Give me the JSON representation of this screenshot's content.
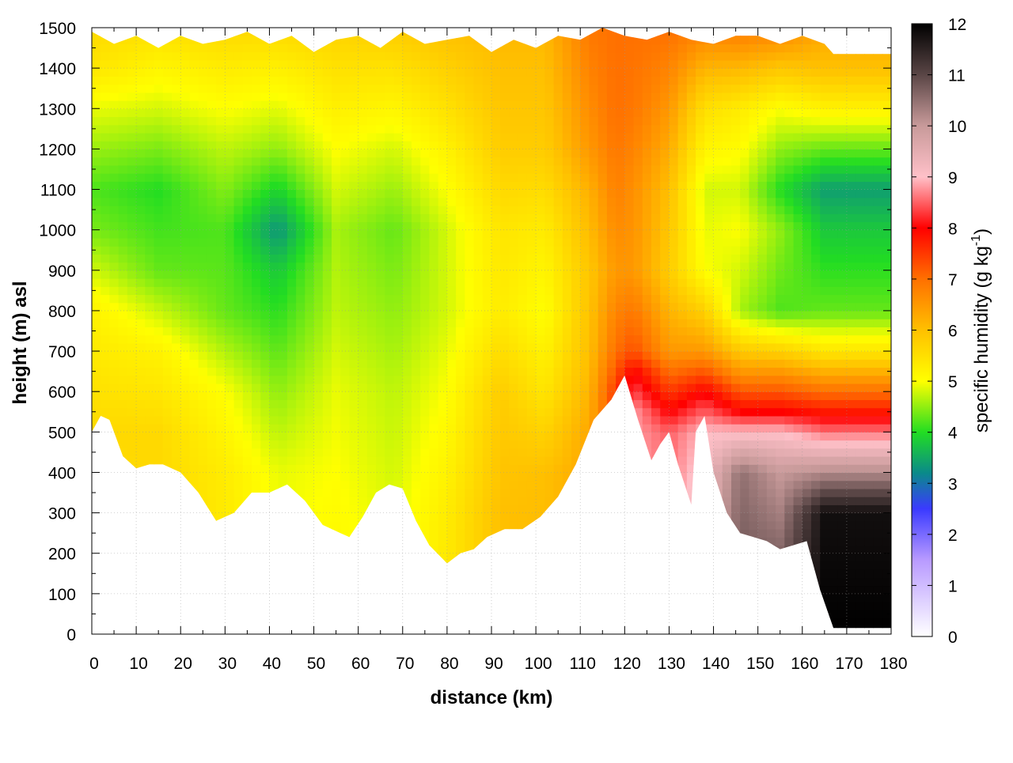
{
  "chart_data": {
    "type": "heatmap",
    "xlabel": "distance (km)",
    "ylabel": "height (m) asl",
    "xlim": [
      0,
      180
    ],
    "ylim": [
      0,
      1500
    ],
    "x_ticks": [
      0,
      10,
      20,
      30,
      40,
      50,
      60,
      70,
      80,
      90,
      100,
      110,
      120,
      130,
      140,
      150,
      160,
      170,
      180
    ],
    "y_ticks": [
      0,
      100,
      200,
      300,
      400,
      500,
      600,
      700,
      800,
      900,
      1000,
      1100,
      1200,
      1300,
      1400,
      1500
    ],
    "grid": true,
    "colorbar": {
      "label_main": "specific humidity (g kg",
      "label_sup": "-1",
      "label_end": ")",
      "range": [
        0,
        12
      ],
      "ticks": [
        0,
        1,
        2,
        3,
        4,
        5,
        6,
        7,
        8,
        9,
        10,
        11,
        12
      ],
      "colors": [
        {
          "value": 0,
          "color": "#ffffff"
        },
        {
          "value": 1.5,
          "color": "#b89aff"
        },
        {
          "value": 2.5,
          "color": "#3a3aff"
        },
        {
          "value": 3.2,
          "color": "#0a8a8a"
        },
        {
          "value": 4,
          "color": "#22dd22"
        },
        {
          "value": 5,
          "color": "#ffff00"
        },
        {
          "value": 6,
          "color": "#ffc000"
        },
        {
          "value": 7,
          "color": "#ff7000"
        },
        {
          "value": 8,
          "color": "#ff0000"
        },
        {
          "value": 9,
          "color": "#ffc0c8"
        },
        {
          "value": 10,
          "color": "#c89a9a"
        },
        {
          "value": 11,
          "color": "#5a4646"
        },
        {
          "value": 12,
          "color": "#000000"
        }
      ]
    },
    "terrain_bottom": [
      [
        0,
        500
      ],
      [
        2,
        540
      ],
      [
        4,
        530
      ],
      [
        7,
        440
      ],
      [
        10,
        410
      ],
      [
        13,
        420
      ],
      [
        16,
        420
      ],
      [
        20,
        400
      ],
      [
        24,
        350
      ],
      [
        28,
        280
      ],
      [
        32,
        300
      ],
      [
        36,
        350
      ],
      [
        40,
        350
      ],
      [
        44,
        370
      ],
      [
        48,
        330
      ],
      [
        52,
        270
      ],
      [
        56,
        250
      ],
      [
        58,
        240
      ],
      [
        61,
        290
      ],
      [
        64,
        350
      ],
      [
        67,
        370
      ],
      [
        70,
        360
      ],
      [
        73,
        280
      ],
      [
        76,
        220
      ],
      [
        80,
        175
      ],
      [
        83,
        200
      ],
      [
        86,
        210
      ],
      [
        89,
        240
      ],
      [
        93,
        260
      ],
      [
        97,
        260
      ],
      [
        101,
        290
      ],
      [
        105,
        340
      ],
      [
        109,
        420
      ],
      [
        113,
        530
      ],
      [
        117,
        580
      ],
      [
        120,
        640
      ],
      [
        123,
        530
      ],
      [
        126,
        430
      ],
      [
        128,
        470
      ],
      [
        130,
        500
      ],
      [
        132,
        420
      ],
      [
        135,
        320
      ],
      [
        136,
        500
      ],
      [
        138,
        540
      ],
      [
        140,
        400
      ],
      [
        143,
        300
      ],
      [
        146,
        250
      ],
      [
        149,
        240
      ],
      [
        152,
        230
      ],
      [
        155,
        210
      ],
      [
        158,
        220
      ],
      [
        161,
        230
      ],
      [
        164,
        110
      ],
      [
        167,
        15
      ],
      [
        180,
        15
      ]
    ],
    "terrain_top": [
      [
        0,
        1490
      ],
      [
        5,
        1460
      ],
      [
        10,
        1480
      ],
      [
        15,
        1450
      ],
      [
        20,
        1480
      ],
      [
        25,
        1460
      ],
      [
        30,
        1470
      ],
      [
        35,
        1490
      ],
      [
        40,
        1460
      ],
      [
        45,
        1480
      ],
      [
        50,
        1440
      ],
      [
        55,
        1470
      ],
      [
        60,
        1480
      ],
      [
        65,
        1450
      ],
      [
        70,
        1490
      ],
      [
        75,
        1460
      ],
      [
        80,
        1470
      ],
      [
        85,
        1480
      ],
      [
        90,
        1440
      ],
      [
        95,
        1470
      ],
      [
        100,
        1450
      ],
      [
        105,
        1480
      ],
      [
        110,
        1470
      ],
      [
        115,
        1500
      ],
      [
        120,
        1480
      ],
      [
        125,
        1470
      ],
      [
        130,
        1490
      ],
      [
        135,
        1470
      ],
      [
        140,
        1460
      ],
      [
        145,
        1480
      ],
      [
        150,
        1480
      ],
      [
        155,
        1460
      ],
      [
        160,
        1480
      ],
      [
        165,
        1460
      ],
      [
        167,
        1435
      ],
      [
        180,
        1435
      ]
    ],
    "column_profiles": [
      {
        "x": 0,
        "levels": [
          [
            0,
            5.5
          ],
          [
            500,
            5.6
          ],
          [
            800,
            5.2
          ],
          [
            1000,
            4.4
          ],
          [
            1100,
            4.2
          ],
          [
            1300,
            4.9
          ],
          [
            1400,
            5.4
          ],
          [
            1500,
            5.6
          ]
        ]
      },
      {
        "x": 15,
        "levels": [
          [
            0,
            5.6
          ],
          [
            500,
            5.6
          ],
          [
            700,
            5.2
          ],
          [
            900,
            4.3
          ],
          [
            1100,
            4.0
          ],
          [
            1300,
            4.8
          ],
          [
            1500,
            5.5
          ]
        ]
      },
      {
        "x": 30,
        "levels": [
          [
            0,
            5.4
          ],
          [
            400,
            5.3
          ],
          [
            600,
            5.0
          ],
          [
            800,
            4.3
          ],
          [
            1000,
            4.2
          ],
          [
            1200,
            4.7
          ],
          [
            1500,
            5.6
          ]
        ]
      },
      {
        "x": 42,
        "levels": [
          [
            0,
            5.0
          ],
          [
            400,
            4.9
          ],
          [
            600,
            4.5
          ],
          [
            900,
            3.8
          ],
          [
            1000,
            3.3
          ],
          [
            1200,
            4.5
          ],
          [
            1500,
            5.6
          ]
        ]
      },
      {
        "x": 55,
        "levels": [
          [
            0,
            5.2
          ],
          [
            400,
            5.0
          ],
          [
            600,
            4.9
          ],
          [
            800,
            4.7
          ],
          [
            1000,
            4.6
          ],
          [
            1200,
            5.0
          ],
          [
            1500,
            5.7
          ]
        ]
      },
      {
        "x": 68,
        "levels": [
          [
            0,
            5.0
          ],
          [
            400,
            4.8
          ],
          [
            600,
            4.7
          ],
          [
            800,
            4.5
          ],
          [
            1000,
            4.3
          ],
          [
            1200,
            4.8
          ],
          [
            1500,
            5.8
          ]
        ]
      },
      {
        "x": 80,
        "levels": [
          [
            0,
            5.4
          ],
          [
            300,
            5.3
          ],
          [
            600,
            5.0
          ],
          [
            800,
            4.8
          ],
          [
            1000,
            4.8
          ],
          [
            1200,
            5.2
          ],
          [
            1500,
            6.0
          ]
        ]
      },
      {
        "x": 92,
        "levels": [
          [
            0,
            6.0
          ],
          [
            300,
            6.0
          ],
          [
            600,
            5.8
          ],
          [
            800,
            5.3
          ],
          [
            1000,
            5.4
          ],
          [
            1200,
            5.8
          ],
          [
            1500,
            6.1
          ]
        ]
      },
      {
        "x": 102,
        "levels": [
          [
            0,
            6.1
          ],
          [
            400,
            6.0
          ],
          [
            600,
            5.4
          ],
          [
            800,
            5.0
          ],
          [
            1000,
            5.3
          ],
          [
            1200,
            5.8
          ],
          [
            1500,
            6.1
          ]
        ]
      },
      {
        "x": 112,
        "levels": [
          [
            0,
            6.3
          ],
          [
            500,
            6.3
          ],
          [
            700,
            6.0
          ],
          [
            900,
            5.9
          ],
          [
            1100,
            6.2
          ],
          [
            1200,
            6.5
          ],
          [
            1500,
            6.9
          ]
        ]
      },
      {
        "x": 118,
        "levels": [
          [
            0,
            7.0
          ],
          [
            600,
            7.5
          ],
          [
            700,
            7.0
          ],
          [
            900,
            6.5
          ],
          [
            1100,
            6.8
          ],
          [
            1300,
            7.0
          ],
          [
            1500,
            7.0
          ]
        ]
      },
      {
        "x": 122,
        "levels": [
          [
            0,
            9.0
          ],
          [
            550,
            8.8
          ],
          [
            650,
            8.0
          ],
          [
            700,
            7.3
          ],
          [
            900,
            6.5
          ],
          [
            1100,
            6.6
          ],
          [
            1300,
            6.9
          ],
          [
            1500,
            7.0
          ]
        ]
      },
      {
        "x": 130,
        "levels": [
          [
            0,
            9.0
          ],
          [
            500,
            8.5
          ],
          [
            600,
            7.5
          ],
          [
            700,
            6.5
          ],
          [
            900,
            5.8
          ],
          [
            1100,
            6.0
          ],
          [
            1300,
            6.5
          ],
          [
            1500,
            7.0
          ]
        ]
      },
      {
        "x": 138,
        "levels": [
          [
            0,
            10.0
          ],
          [
            500,
            9.0
          ],
          [
            600,
            8.0
          ],
          [
            700,
            6.5
          ],
          [
            900,
            5.0
          ],
          [
            1100,
            4.8
          ],
          [
            1300,
            5.5
          ],
          [
            1500,
            6.8
          ]
        ]
      },
      {
        "x": 146,
        "levels": [
          [
            0,
            11.0
          ],
          [
            400,
            10.5
          ],
          [
            500,
            9.0
          ],
          [
            550,
            8.0
          ],
          [
            650,
            6.5
          ],
          [
            800,
            4.6
          ],
          [
            1000,
            5.0
          ],
          [
            1100,
            4.8
          ],
          [
            1300,
            5.3
          ],
          [
            1500,
            6.9
          ]
        ]
      },
      {
        "x": 155,
        "levels": [
          [
            0,
            11.3
          ],
          [
            400,
            10.0
          ],
          [
            500,
            9.0
          ],
          [
            550,
            8.0
          ],
          [
            650,
            6.5
          ],
          [
            800,
            4.2
          ],
          [
            1000,
            4.5
          ],
          [
            1100,
            4.0
          ],
          [
            1300,
            5.0
          ],
          [
            1500,
            6.8
          ]
        ]
      },
      {
        "x": 165,
        "levels": [
          [
            0,
            12.0
          ],
          [
            300,
            11.8
          ],
          [
            400,
            10.2
          ],
          [
            500,
            8.6
          ],
          [
            550,
            7.8
          ],
          [
            650,
            6.2
          ],
          [
            700,
            5.4
          ],
          [
            800,
            4.3
          ],
          [
            1000,
            3.8
          ],
          [
            1100,
            3.4
          ],
          [
            1200,
            4.3
          ],
          [
            1300,
            5.2
          ],
          [
            1400,
            6.0
          ],
          [
            1500,
            6.3
          ]
        ]
      },
      {
        "x": 180,
        "levels": [
          [
            0,
            12.0
          ],
          [
            300,
            11.8
          ],
          [
            400,
            10.2
          ],
          [
            500,
            8.6
          ],
          [
            550,
            7.8
          ],
          [
            650,
            6.2
          ],
          [
            700,
            5.4
          ],
          [
            800,
            4.3
          ],
          [
            1000,
            3.8
          ],
          [
            1100,
            3.4
          ],
          [
            1200,
            4.3
          ],
          [
            1300,
            5.2
          ],
          [
            1400,
            6.0
          ],
          [
            1500,
            6.3
          ]
        ]
      }
    ]
  }
}
